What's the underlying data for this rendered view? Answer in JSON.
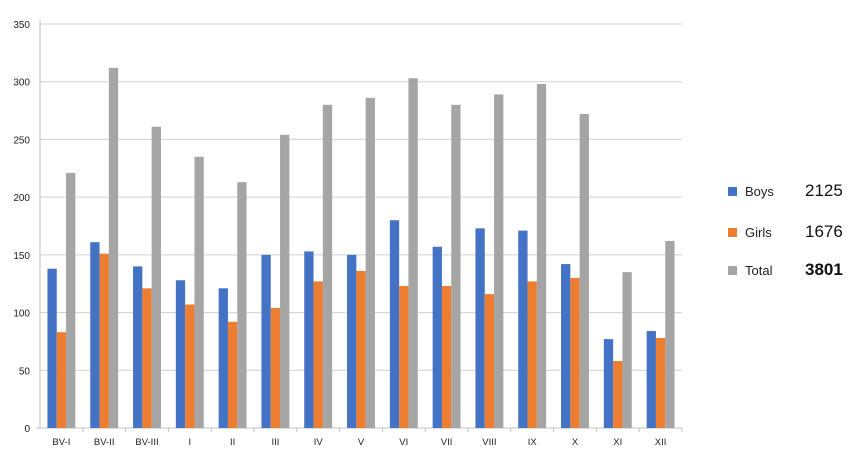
{
  "chart_data": {
    "type": "bar",
    "categories": [
      "BV-I",
      "BV-II",
      "BV-III",
      "I",
      "II",
      "III",
      "IV",
      "V",
      "VI",
      "VII",
      "VIII",
      "IX",
      "X",
      "XI",
      "XII"
    ],
    "series": [
      {
        "name": "Boys",
        "color": "#4472c4",
        "values": [
          138,
          161,
          140,
          128,
          121,
          150,
          153,
          150,
          180,
          157,
          173,
          171,
          142,
          77,
          84
        ]
      },
      {
        "name": "Girls",
        "color": "#ed7d31",
        "values": [
          83,
          151,
          121,
          107,
          92,
          104,
          127,
          136,
          123,
          123,
          116,
          127,
          130,
          58,
          78
        ]
      },
      {
        "name": "Total",
        "color": "#a5a5a5",
        "values": [
          221,
          312,
          261,
          235,
          213,
          254,
          280,
          286,
          303,
          280,
          289,
          298,
          272,
          135,
          162
        ]
      }
    ],
    "ylim": [
      0,
      350
    ],
    "yticks": [
      0,
      50,
      100,
      150,
      200,
      250,
      300,
      350
    ],
    "grid": true,
    "legend_position": "right",
    "legend_totals": [
      "2125",
      "1676",
      "3801"
    ]
  }
}
